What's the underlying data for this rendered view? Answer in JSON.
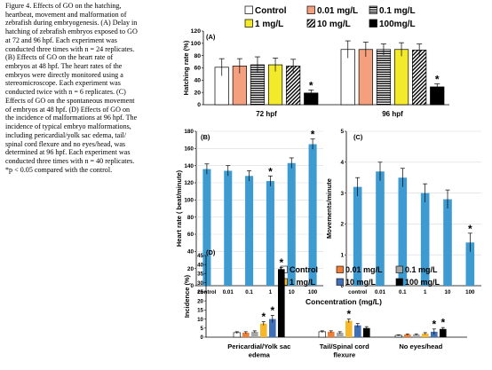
{
  "caption": {
    "lines": [
      "Figure 4. Effects of GO on the hatching,",
      "heartbeat, movement and malformation of",
      "zebrafish during embryogenesis. (A) Delay in",
      "hatching of zebrafish embryos exposed to GO",
      "at 72 and 96 hpf. Each experiment was",
      "conducted three times with n = 24 replicates.",
      "(B) Effects of GO on the heart rate of",
      "embryos at 48 hpf. The heart rates of the",
      "embryos were directly monitored using a",
      "stereomicroscope. Each experiment was",
      "conducted twice with n = 6 replicates. (C)",
      "Effects of GO on the spontaneous movement",
      "of embryos at 48 hpf. (D) Effects of GO on",
      "the incidence of malformations at 96 hpf. The",
      "incidence of typical embryo malformations,",
      "including pericardial/yolk sac edema, tail/",
      "spinal cord flexure and no eyes/head, was",
      "determined at 96 hpf. Each experiment was",
      "conducted three times with n = 40 replicates.",
      "*p < 0.05 compared with the control."
    ]
  },
  "legend_top": {
    "items": [
      {
        "label": "Control",
        "style": "white"
      },
      {
        "label": "0.01 mg/L",
        "style": "salmon"
      },
      {
        "label": "0.1 mg/L",
        "style": "hstripe"
      },
      {
        "label": "1 mg/L",
        "style": "yellow"
      },
      {
        "label": "10 mg/L",
        "style": "dstripe"
      },
      {
        "label": "100mg/L",
        "style": "black"
      }
    ]
  },
  "chart_data": [
    {
      "panel": "(A)",
      "type": "bar",
      "ylabel": "Hatching rate (%)",
      "ylim": [
        0,
        120
      ],
      "yticks": [
        "0",
        "20",
        "40",
        "60",
        "80",
        "100",
        "120"
      ],
      "groups": [
        "72 hpf",
        "96 hpf"
      ],
      "series": [
        {
          "name": "Control",
          "values": [
            61,
            90
          ],
          "errors": [
            14,
            14
          ]
        },
        {
          "name": "0.01 mg/L",
          "values": [
            63,
            90
          ],
          "errors": [
            12,
            12
          ]
        },
        {
          "name": "0.1 mg/L",
          "values": [
            65,
            90
          ],
          "errors": [
            13,
            9
          ]
        },
        {
          "name": "1 mg/L",
          "values": [
            65,
            90
          ],
          "errors": [
            11,
            11
          ]
        },
        {
          "name": "10 mg/L",
          "values": [
            63,
            89
          ],
          "errors": [
            11,
            10
          ]
        },
        {
          "name": "100mg/L",
          "values": [
            19,
            29
          ],
          "errors": [
            5,
            5
          ]
        }
      ],
      "significant": [
        [
          false,
          false,
          false,
          false,
          false,
          true
        ],
        [
          false,
          false,
          false,
          false,
          false,
          true
        ]
      ],
      "star": "*"
    },
    {
      "panel": "(B)",
      "type": "bar",
      "ylabel": "Heart rate ( beat/minute)",
      "ylim": [
        0,
        180
      ],
      "yticks": [
        "0",
        "20",
        "40",
        "60",
        "80",
        "100",
        "120",
        "140",
        "160",
        "180"
      ],
      "categories": [
        "control",
        "0.01",
        "0.1",
        "1",
        "10",
        "100"
      ],
      "values": [
        136,
        134,
        128,
        122,
        143,
        165
      ],
      "errors": [
        6,
        6,
        6,
        6,
        6,
        6
      ],
      "significant": [
        false,
        false,
        false,
        true,
        false,
        true
      ],
      "color": "#3d9bd1",
      "star": "*"
    },
    {
      "panel": "(C)",
      "type": "bar",
      "ylabel": "Movements/minute",
      "ylim": [
        0,
        5
      ],
      "yticks": [
        "0",
        "1",
        "2",
        "3",
        "4",
        "5"
      ],
      "categories": [
        "control",
        "0.01",
        "0.1",
        "1",
        "10",
        "100"
      ],
      "values": [
        3.2,
        3.7,
        3.5,
        3.0,
        2.8,
        1.4
      ],
      "errors": [
        0.3,
        0.3,
        0.3,
        0.3,
        0.3,
        0.3
      ],
      "significant": [
        false,
        false,
        false,
        false,
        false,
        true
      ],
      "color": "#3d9bd1",
      "star": "*"
    },
    {
      "panel": "(D)",
      "type": "bar",
      "ylabel": "Incidence (%)",
      "ylim": [
        0,
        45
      ],
      "yticks": [
        "0",
        "5",
        "10",
        "15",
        "20",
        "25",
        "30",
        "35",
        "40",
        "45"
      ],
      "groups": [
        "Pericardial/Yolk sac edema",
        "Tail/Spinal cord flexure",
        "No eyes/head"
      ],
      "group_lines": [
        [
          "Pericardial/Yolk sac",
          "edema"
        ],
        [
          "Tail/Spinal cord",
          "flexure"
        ],
        [
          "No eyes/head"
        ]
      ],
      "legend": [
        "Control",
        "0.01 mg/L",
        "0.1 mg/L",
        "1 mg/L",
        "10 mg/L",
        "100 mg/L"
      ],
      "series": [
        {
          "name": "Control",
          "values": [
            2.5,
            3,
            1
          ],
          "errors": [
            0.5,
            0.5,
            0.3
          ]
        },
        {
          "name": "0.01 mg/L",
          "values": [
            2.5,
            3,
            1.5
          ],
          "errors": [
            0.5,
            0.5,
            0.3
          ]
        },
        {
          "name": "0.1 mg/L",
          "values": [
            3,
            2.5,
            1.5
          ],
          "errors": [
            0.5,
            0.5,
            0.3
          ]
        },
        {
          "name": "1 mg/L",
          "values": [
            7.5,
            9,
            2
          ],
          "errors": [
            1,
            1,
            0.5
          ]
        },
        {
          "name": "10 mg/L",
          "values": [
            10,
            6.5,
            3
          ],
          "errors": [
            2,
            1,
            1.5
          ]
        },
        {
          "name": "100 mg/L",
          "values": [
            37.5,
            5,
            4.5
          ],
          "errors": [
            1,
            0.8,
            0.8
          ]
        }
      ],
      "significant": [
        [
          false,
          false,
          false,
          true,
          true,
          true
        ],
        [
          false,
          false,
          false,
          true,
          false,
          false
        ],
        [
          false,
          false,
          false,
          false,
          true,
          true
        ]
      ],
      "star": "*"
    }
  ],
  "shared_xlabel": "Concentration (mg/L)",
  "colors": {
    "salmon": "#f4a07e",
    "yellow": "#f3ea2b",
    "blue_bc": "#3d9bd1",
    "d_series": [
      "#ffffff",
      "#ef7d34",
      "#a5a5a5",
      "#f6b828",
      "#3f6fb6",
      "#000000"
    ]
  }
}
